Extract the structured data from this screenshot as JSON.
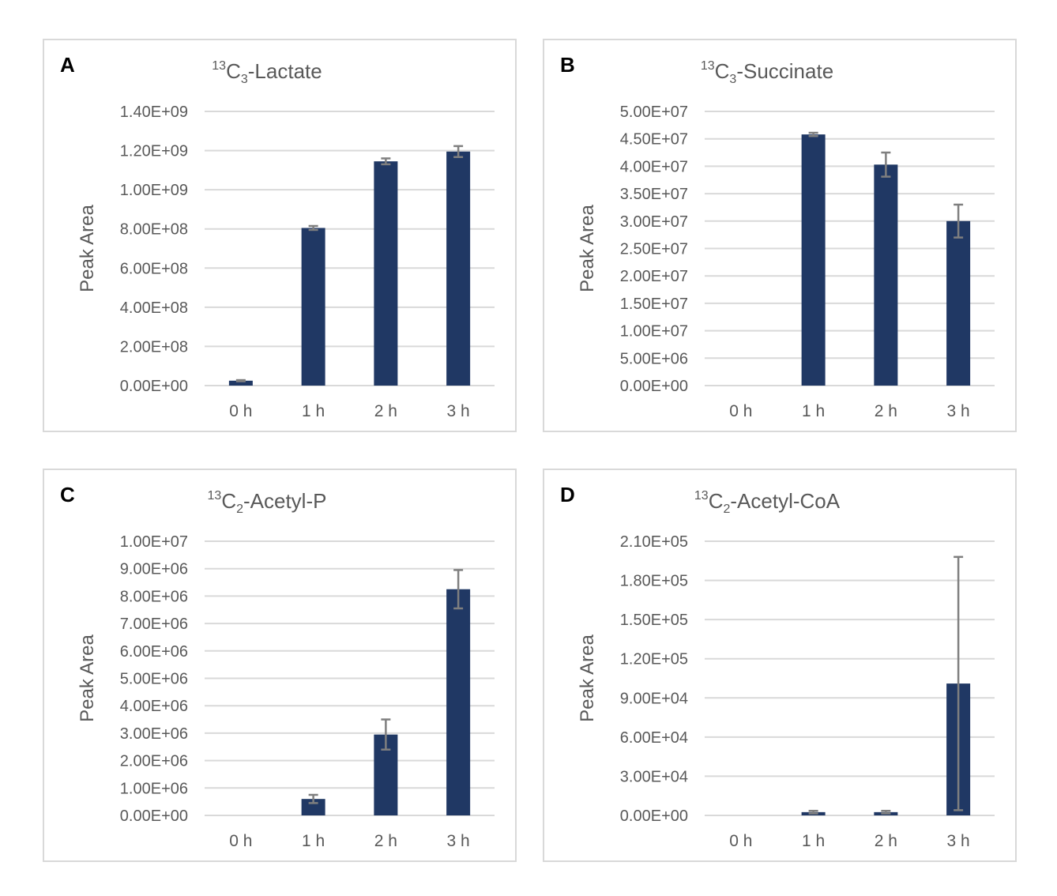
{
  "chart_data": [
    {
      "type": "bar",
      "panel_letter": "A",
      "title_sup": "13",
      "title_base": "C",
      "title_sub": "3",
      "title_rest": "-Lactate",
      "ylabel": "Peak Area",
      "categories": [
        "0 h",
        "1 h",
        "2 h",
        "3 h"
      ],
      "values": [
        25000000,
        805000000,
        1145000000,
        1195000000
      ],
      "errors": [
        3000000,
        10000000,
        15000000,
        28000000
      ],
      "yticks": [
        0,
        200000000,
        400000000,
        600000000,
        800000000,
        1000000000,
        1200000000,
        1400000000
      ],
      "ytick_labels": [
        "0.00E+00",
        "2.00E+08",
        "4.00E+08",
        "6.00E+08",
        "8.00E+08",
        "1.00E+09",
        "1.20E+09",
        "1.40E+09"
      ],
      "ylim": [
        0,
        1400000000
      ]
    },
    {
      "type": "bar",
      "panel_letter": "B",
      "title_sup": "13",
      "title_base": "C",
      "title_sub": "3",
      "title_rest": "-Succinate",
      "ylabel": "Peak Area",
      "categories": [
        "0 h",
        "1 h",
        "2 h",
        "3 h"
      ],
      "values": [
        0,
        45800000,
        40300000,
        30000000
      ],
      "errors": [
        0,
        300000,
        2200000,
        3000000
      ],
      "yticks": [
        0,
        5000000,
        10000000,
        15000000,
        20000000,
        25000000,
        30000000,
        35000000,
        40000000,
        45000000,
        50000000
      ],
      "ytick_labels": [
        "0.00E+00",
        "5.00E+06",
        "1.00E+07",
        "1.50E+07",
        "2.00E+07",
        "2.50E+07",
        "3.00E+07",
        "3.50E+07",
        "4.00E+07",
        "4.50E+07",
        "5.00E+07"
      ],
      "ylim": [
        0,
        50000000
      ]
    },
    {
      "type": "bar",
      "panel_letter": "C",
      "title_sup": "13",
      "title_base": "C",
      "title_sub": "2",
      "title_rest": "-Acetyl-P",
      "ylabel": "Peak Area",
      "categories": [
        "0 h",
        "1 h",
        "2 h",
        "3 h"
      ],
      "values": [
        0,
        600000,
        2950000,
        8250000
      ],
      "errors": [
        0,
        150000,
        550000,
        700000
      ],
      "yticks": [
        0,
        1000000,
        2000000,
        3000000,
        4000000,
        5000000,
        6000000,
        7000000,
        8000000,
        9000000,
        10000000
      ],
      "ytick_labels": [
        "0.00E+00",
        "1.00E+06",
        "2.00E+06",
        "3.00E+06",
        "4.00E+06",
        "5.00E+06",
        "6.00E+06",
        "7.00E+06",
        "8.00E+06",
        "9.00E+06",
        "1.00E+07"
      ],
      "ylim": [
        0,
        10000000
      ]
    },
    {
      "type": "bar",
      "panel_letter": "D",
      "title_sup": "13",
      "title_base": "C",
      "title_sub": "2",
      "title_rest": "-Acetyl-CoA",
      "ylabel": "Peak Area",
      "categories": [
        "0 h",
        "1 h",
        "2 h",
        "3 h"
      ],
      "values": [
        0,
        2500,
        2500,
        101000
      ],
      "errors": [
        0,
        1000,
        1000,
        97000
      ],
      "yticks": [
        0,
        30000,
        60000,
        90000,
        120000,
        150000,
        180000,
        210000
      ],
      "ytick_labels": [
        "0.00E+00",
        "3.00E+04",
        "6.00E+04",
        "9.00E+04",
        "1.20E+05",
        "1.50E+05",
        "1.80E+05",
        "2.10E+05"
      ],
      "ylim": [
        0,
        210000
      ]
    }
  ],
  "colors": {
    "bar": "#203864",
    "error_bar": "#7f7f7f",
    "grid": "#d9d9d9",
    "text": "#595959",
    "panel_letter": "#000000",
    "border": "#d9d9d9"
  }
}
